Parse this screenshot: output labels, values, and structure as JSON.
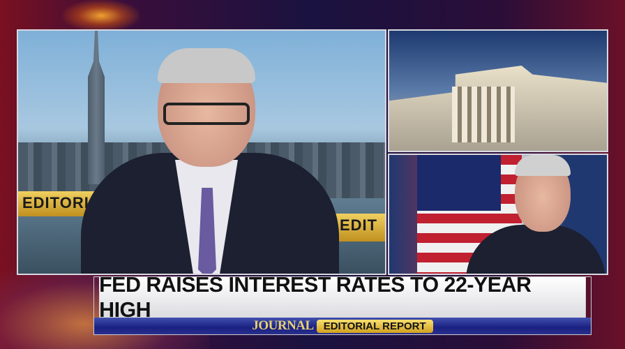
{
  "lower_third": {
    "headline": "FED RAISES INTEREST RATES TO 22-YEAR HIGH",
    "show_brand": "JOURNAL",
    "show_name": "EDITORIAL REPORT"
  },
  "main_panel": {
    "background_sign_left": "EDITORIA",
    "background_sign_right": "EDIT"
  },
  "colors": {
    "headline_bg": "#ffffff",
    "bar_bg": "#1a2080",
    "gold": "#e8c040"
  }
}
